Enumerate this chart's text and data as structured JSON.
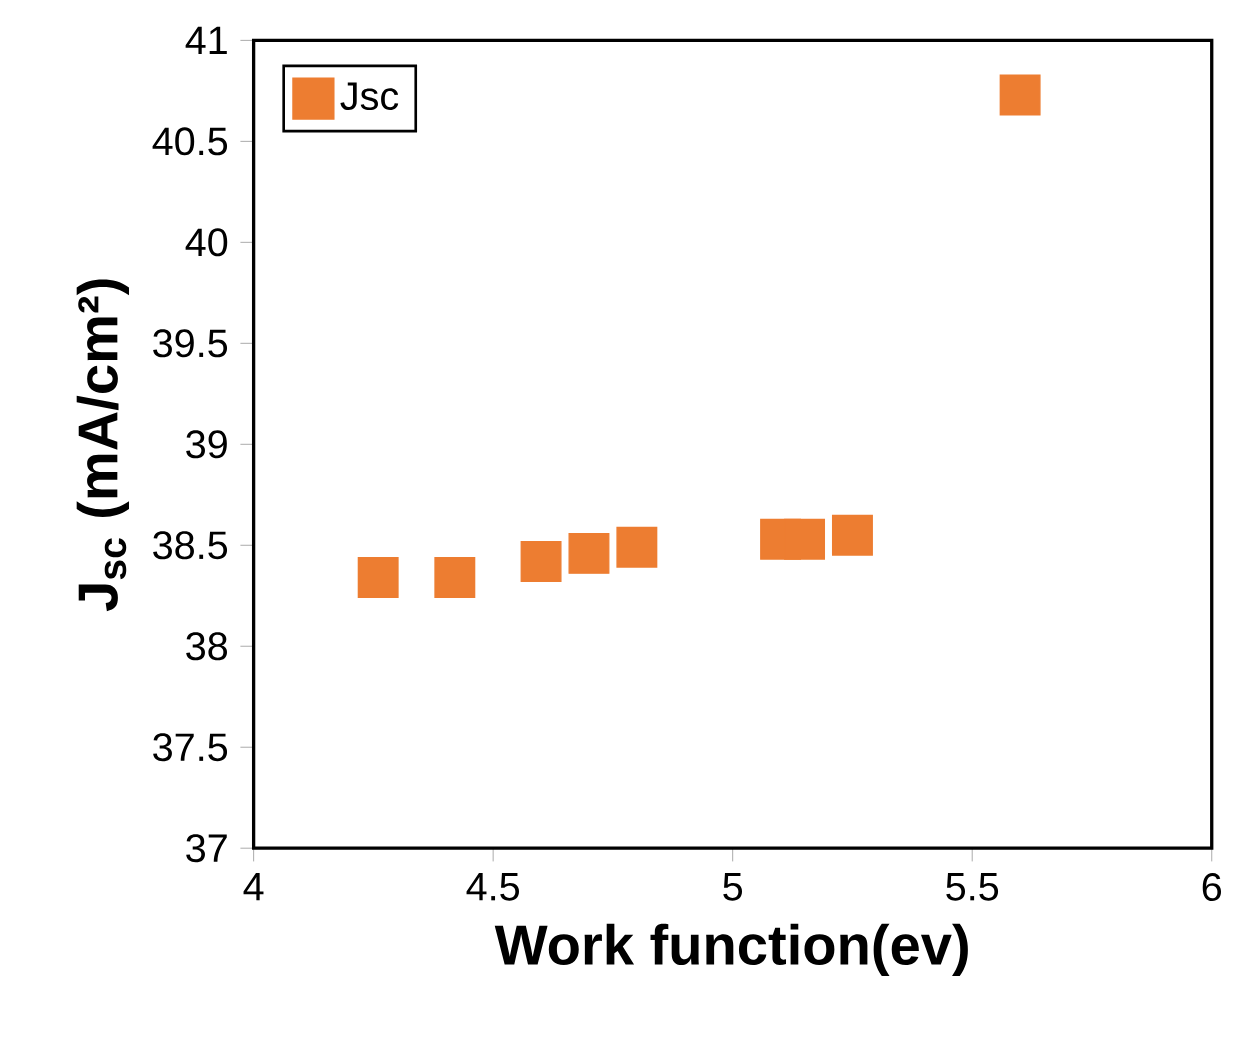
{
  "chart_data": {
    "type": "scatter",
    "xlabel": "Work function(ev)",
    "ylabel": "J$_{sc}$ (mA/cm²)",
    "series": [
      {
        "name": "Jsc",
        "color": "#ed7d31",
        "x": [
          4.26,
          4.42,
          4.6,
          4.7,
          4.8,
          5.1,
          5.15,
          5.25,
          5.6
        ],
        "values": [
          38.34,
          38.34,
          38.42,
          38.46,
          38.49,
          38.53,
          38.53,
          38.55,
          40.73
        ]
      }
    ],
    "xlim": [
      4,
      6
    ],
    "xticks": [
      4,
      4.5,
      5,
      5.5,
      6
    ],
    "ylim": [
      37,
      41
    ],
    "yticks": [
      37,
      37.5,
      38,
      38.5,
      39,
      39.5,
      40,
      40.5,
      41
    ],
    "marker": "square",
    "legend": "top left",
    "grid": false
  }
}
